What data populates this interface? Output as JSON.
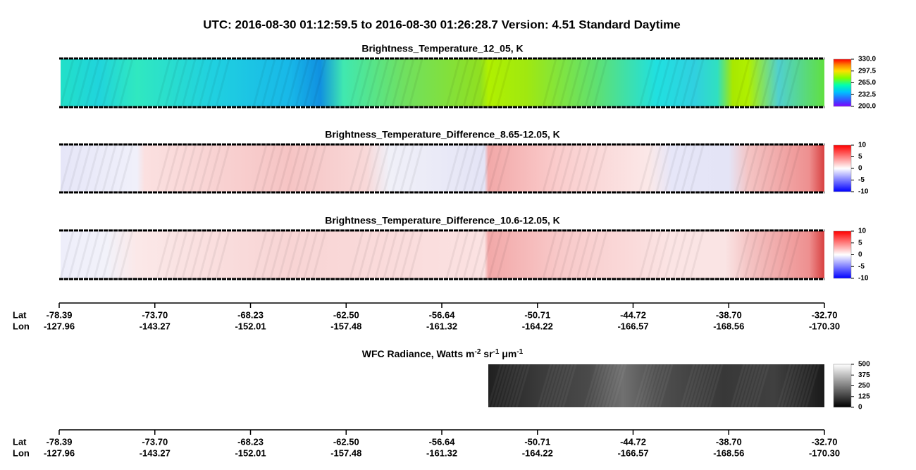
{
  "title": "UTC:  2016-08-30   01:12:59.5  to  2016-08-30   01:26:28.7    Version: 4.51  Standard Daytime",
  "panels": [
    {
      "title": "Brightness_Temperature_12_05, K",
      "colorbar": {
        "lim": [
          200,
          330
        ],
        "ticks": [
          {
            "value": 330,
            "label": "330.0"
          },
          {
            "value": 297.5,
            "label": "297.5"
          },
          {
            "value": 265,
            "label": "265.0"
          },
          {
            "value": 232.5,
            "label": "232.5"
          },
          {
            "value": 200,
            "label": "200.0"
          }
        ]
      }
    },
    {
      "title": "Brightness_Temperature_Difference_8.65-12.05, K",
      "colorbar": {
        "lim": [
          -10,
          10
        ],
        "ticks": [
          10,
          5,
          0,
          -5,
          -10
        ]
      }
    },
    {
      "title": "Brightness_Temperature_Difference_10.6-12.05, K",
      "colorbar": {
        "lim": [
          -10,
          10
        ],
        "ticks": [
          10,
          5,
          0,
          -5,
          -10
        ]
      }
    },
    {
      "title_parts": [
        "WFC Radiance, Watts m",
        "-2",
        " sr",
        "-1",
        " μm",
        "-1"
      ],
      "colorbar": {
        "lim": [
          0,
          500
        ],
        "ticks": [
          500,
          375,
          250,
          125,
          0
        ]
      }
    }
  ],
  "axes": [
    {
      "lat_label": "Lat",
      "lon_label": "Lon",
      "lat": [
        "-78.39",
        "-73.70",
        "-68.23",
        "-62.50",
        "-56.64",
        "-50.71",
        "-44.72",
        "-38.70",
        "-32.70"
      ],
      "lon": [
        "-127.96",
        "-143.27",
        "-152.01",
        "-157.48",
        "-161.32",
        "-164.22",
        "-166.57",
        "-168.56",
        "-170.30"
      ]
    },
    {
      "lat_label": "Lat",
      "lon_label": "Lon",
      "lat": [
        "-78.39",
        "-73.70",
        "-68.23",
        "-62.50",
        "-56.64",
        "-50.71",
        "-44.72",
        "-38.70",
        "-32.70"
      ],
      "lon": [
        "-127.96",
        "-143.27",
        "-152.01",
        "-157.48",
        "-161.32",
        "-164.22",
        "-166.57",
        "-168.56",
        "-170.30"
      ]
    }
  ]
}
